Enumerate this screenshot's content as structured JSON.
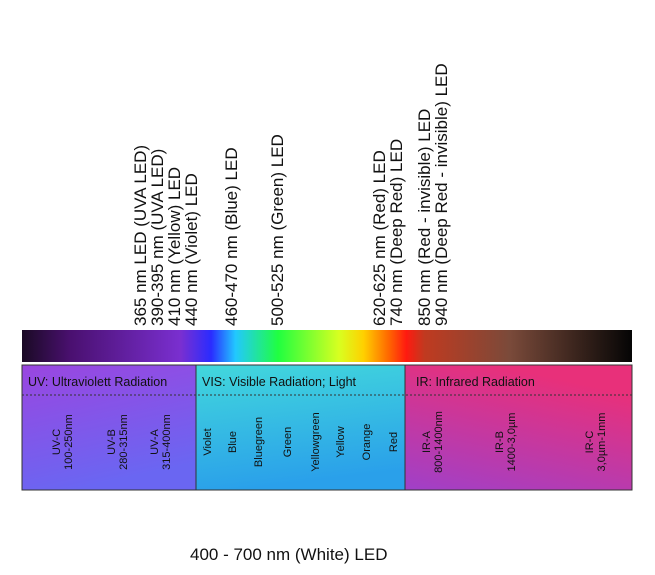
{
  "led_labels": [
    "365 nm LED (UVA LED)",
    "390-395 nm (UVA LED)",
    "410 nm (Yellow) LED",
    "440 nm (Violet) LED",
    "460-470 nm (Blue) LED",
    "500-525 nm (Green) LED",
    "620-625 nm (Red) LED",
    "740 nm (Deep Red) LED",
    "850 nm (Red - invisible) LED",
    "940 nm (Deep Red - invisible) LED"
  ],
  "regions": [
    {
      "title": "UV: Ultraviolett Radiation",
      "bands": [
        [
          "UV-C",
          "100-250nm"
        ],
        [
          "UV-B",
          "280-315nm"
        ],
        [
          "UV-A",
          "315-400nm"
        ]
      ]
    },
    {
      "title": "VIS: Visible Radiation; Light",
      "bands": [
        [
          "Violet"
        ],
        [
          "Blue"
        ],
        [
          "Bluegreen"
        ],
        [
          "Green"
        ],
        [
          "Yellowgreen"
        ],
        [
          "Yellow"
        ],
        [
          "Orange"
        ],
        [
          "Red"
        ]
      ]
    },
    {
      "title": "IR: Infrared Radiation",
      "bands": [
        [
          "IR-A",
          "800-1400nm"
        ],
        [
          "IR-B",
          "1400-3,0µm"
        ],
        [
          "IR-C",
          "3,0µm-1mm"
        ]
      ]
    }
  ],
  "footer": "400 - 700 nm (White) LED"
}
